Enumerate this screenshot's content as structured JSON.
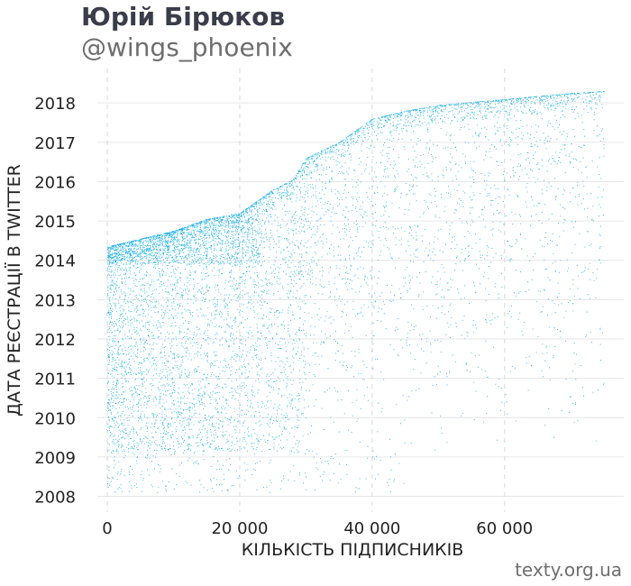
{
  "header": {
    "title": "Юрій Бірюков",
    "subtitle": "@wings_phoenix"
  },
  "footer": {
    "credit": "texty.org.ua"
  },
  "colors": {
    "points": "#1aaee0",
    "grid": "#e6e6e6",
    "vgrid": "#d8d8d8",
    "text": "#222222"
  },
  "chart_data": {
    "type": "scatter",
    "title": "",
    "xlabel": "КІЛЬКІСТЬ ПІДПИСНИКІВ",
    "ylabel": "ДАТА РЕЄСТРАЦІЇ В TWITTER",
    "xlim": [
      -1500,
      78000
    ],
    "ylim": [
      2007.6,
      2018.6
    ],
    "x_ticks": [
      0,
      20000,
      40000,
      60000
    ],
    "x_tick_labels": [
      "0",
      "20 000",
      "40 000",
      "60 000"
    ],
    "y_ticks": [
      2008,
      2009,
      2010,
      2011,
      2012,
      2013,
      2014,
      2015,
      2016,
      2017,
      2018
    ],
    "y_tick_labels": [
      "2008",
      "2009",
      "2010",
      "2011",
      "2012",
      "2013",
      "2014",
      "2015",
      "2016",
      "2017",
      "2018"
    ],
    "grid": "horizontal solid, vertical dashed",
    "legend": "none",
    "upper_envelope": [
      [
        0,
        2014.35
      ],
      [
        5000,
        2014.55
      ],
      [
        10000,
        2014.75
      ],
      [
        15000,
        2015.05
      ],
      [
        20000,
        2015.2
      ],
      [
        25000,
        2015.8
      ],
      [
        28000,
        2016.05
      ],
      [
        30000,
        2016.6
      ],
      [
        35000,
        2017.0
      ],
      [
        40000,
        2017.6
      ],
      [
        45000,
        2017.8
      ],
      [
        50000,
        2017.95
      ],
      [
        60000,
        2018.1
      ],
      [
        70000,
        2018.25
      ],
      [
        75000,
        2018.3
      ]
    ],
    "dense_bands": [
      {
        "x_range": [
          0,
          23000
        ],
        "y_range": [
          2013.9,
          2014.5
        ]
      },
      {
        "x_range": [
          0,
          28000
        ],
        "y_range": [
          2009.2,
          2014.5
        ]
      }
    ],
    "approx_point_count": 9000
  }
}
